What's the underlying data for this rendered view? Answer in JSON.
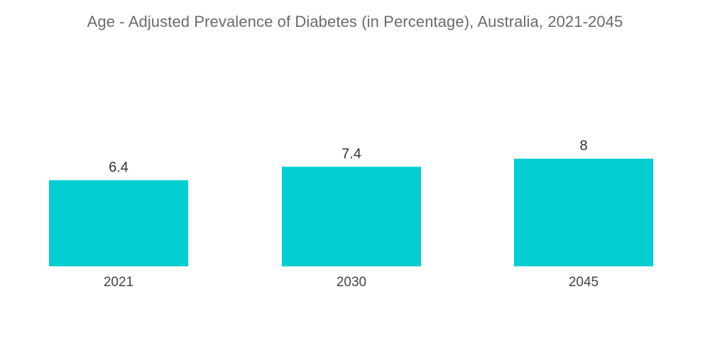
{
  "chart_data": {
    "type": "bar",
    "title": "Age - Adjusted Prevalence of Diabetes (in Percentage), Australia, 2021-2045",
    "categories": [
      "2021",
      "2030",
      "2045"
    ],
    "values": [
      6.4,
      7.4,
      8
    ],
    "value_labels": [
      "6.4",
      "7.4",
      "8"
    ],
    "xlabel": "",
    "ylabel": "",
    "ylim": [
      0,
      8
    ],
    "grid": false,
    "legend": "none",
    "bar_color": "#00CED1"
  }
}
